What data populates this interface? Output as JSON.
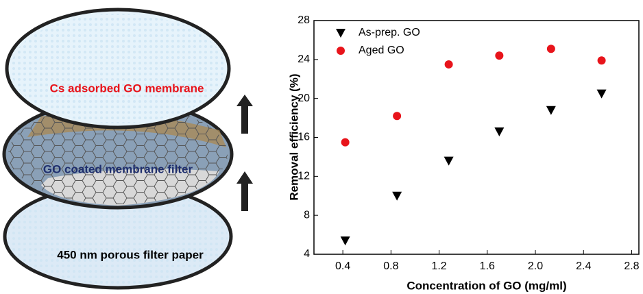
{
  "diagram": {
    "labels": [
      "Cs adsorbed GO membrane",
      "GO coated membrane filter",
      "450 nm porous filter paper"
    ]
  },
  "chart_data": {
    "type": "scatter",
    "xlabel": "Concentration of GO (mg/ml)",
    "ylabel": "Removal efficiency (%)",
    "xlim": [
      0.16,
      2.86
    ],
    "ylim": [
      4,
      28
    ],
    "xticks": [
      0.4,
      0.8,
      1.2,
      1.6,
      {
        "value": 2,
        "label": "2.0"
      },
      2.4,
      2.8
    ],
    "yticks": [
      4,
      8,
      12,
      16,
      20,
      24,
      28
    ],
    "legend": "upper-left",
    "series": [
      {
        "name": "As-prep. GO",
        "color": "#000000",
        "marker": "triangle-down",
        "x": [
          0.42,
          0.85,
          1.28,
          1.7,
          2.13,
          2.55
        ],
        "values": [
          5.4,
          10,
          13.6,
          16.6,
          18.8,
          20.5
        ]
      },
      {
        "name": "Aged GO",
        "color": "#e8141b",
        "marker": "circle",
        "x": [
          0.42,
          0.85,
          1.28,
          1.7,
          2.13,
          2.55
        ],
        "values": [
          15.5,
          18.2,
          23.5,
          24.4,
          25.1,
          23.9
        ]
      }
    ]
  }
}
